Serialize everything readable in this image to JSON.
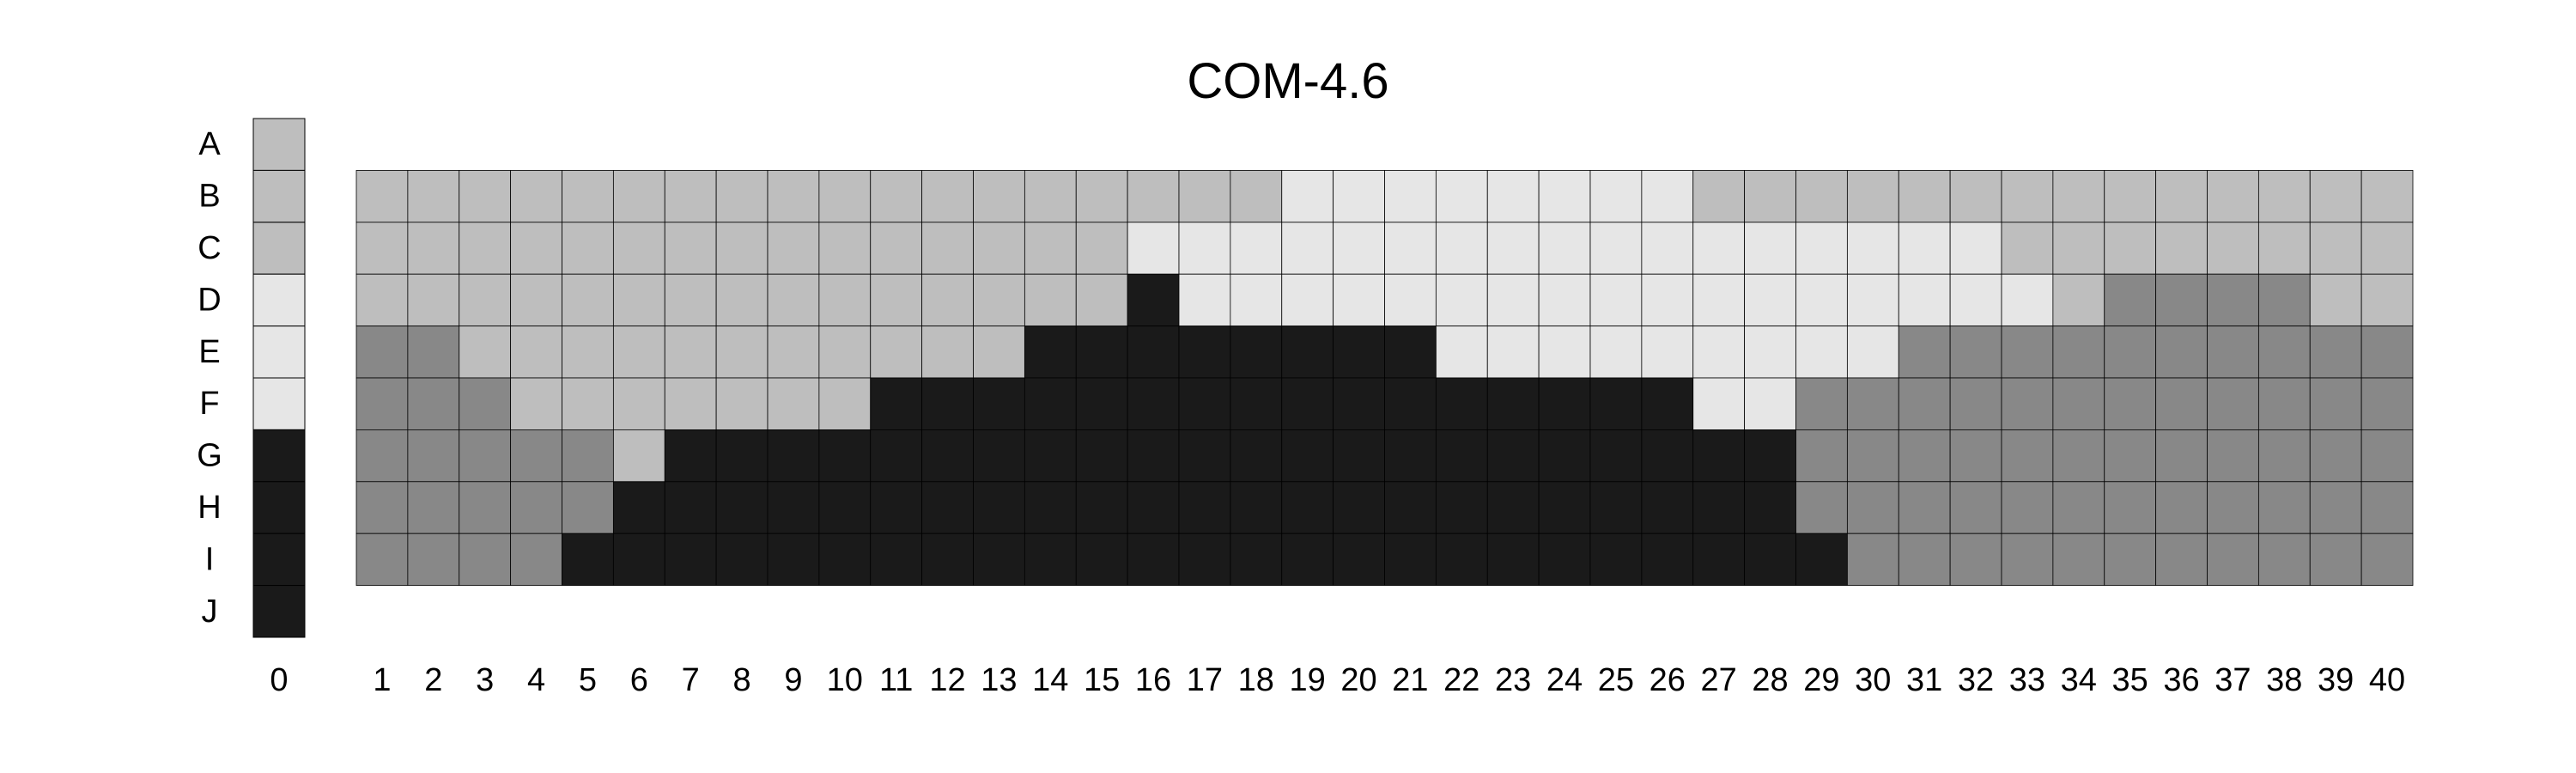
{
  "chart_data": {
    "type": "heatmap",
    "title": "COM-4.6",
    "xlabel": "",
    "ylabel": "",
    "row_labels": [
      "A",
      "B",
      "C",
      "D",
      "E",
      "F",
      "G",
      "H",
      "I",
      "J"
    ],
    "reference_column": {
      "label": "0",
      "levels": [
        2,
        2,
        2,
        1,
        1,
        1,
        4,
        4,
        4,
        4
      ]
    },
    "column_labels": [
      "1",
      "2",
      "3",
      "4",
      "5",
      "6",
      "7",
      "8",
      "9",
      "10",
      "11",
      "12",
      "13",
      "14",
      "15",
      "16",
      "17",
      "18",
      "19",
      "20",
      "21",
      "22",
      "23",
      "24",
      "25",
      "26",
      "27",
      "28",
      "29",
      "30",
      "31",
      "32",
      "33",
      "34",
      "35",
      "36",
      "37",
      "38",
      "39",
      "40"
    ],
    "grid_rows": [
      "B",
      "C",
      "D",
      "E",
      "F",
      "G",
      "H",
      "I"
    ],
    "level_colors": {
      "1": "#e6e6e6",
      "2": "#bebebe",
      "3": "#888888",
      "4": "#1a1a1a"
    },
    "matrix": [
      [
        2,
        2,
        2,
        2,
        2,
        2,
        2,
        2,
        2,
        2,
        2,
        2,
        2,
        2,
        2,
        2,
        2,
        2,
        1,
        1,
        1,
        1,
        1,
        1,
        1,
        1,
        2,
        2,
        2,
        2,
        2,
        2,
        2,
        2,
        2,
        2,
        2,
        2,
        2,
        2
      ],
      [
        2,
        2,
        2,
        2,
        2,
        2,
        2,
        2,
        2,
        2,
        2,
        2,
        2,
        2,
        2,
        1,
        1,
        1,
        1,
        1,
        1,
        1,
        1,
        1,
        1,
        1,
        1,
        1,
        1,
        1,
        1,
        1,
        2,
        2,
        2,
        2,
        2,
        2,
        2,
        2
      ],
      [
        2,
        2,
        2,
        2,
        2,
        2,
        2,
        2,
        2,
        2,
        2,
        2,
        2,
        2,
        2,
        4,
        1,
        1,
        1,
        1,
        1,
        1,
        1,
        1,
        1,
        1,
        1,
        1,
        1,
        1,
        1,
        1,
        1,
        2,
        3,
        3,
        3,
        3,
        2,
        2
      ],
      [
        3,
        3,
        2,
        2,
        2,
        2,
        2,
        2,
        2,
        2,
        2,
        2,
        2,
        4,
        4,
        4,
        4,
        4,
        4,
        4,
        4,
        1,
        1,
        1,
        1,
        1,
        1,
        1,
        1,
        1,
        3,
        3,
        3,
        3,
        3,
        3,
        3,
        3,
        3,
        3
      ],
      [
        3,
        3,
        3,
        2,
        2,
        2,
        2,
        2,
        2,
        2,
        4,
        4,
        4,
        4,
        4,
        4,
        4,
        4,
        4,
        4,
        4,
        4,
        4,
        4,
        4,
        4,
        1,
        1,
        3,
        3,
        3,
        3,
        3,
        3,
        3,
        3,
        3,
        3,
        3,
        3
      ],
      [
        3,
        3,
        3,
        3,
        3,
        2,
        4,
        4,
        4,
        4,
        4,
        4,
        4,
        4,
        4,
        4,
        4,
        4,
        4,
        4,
        4,
        4,
        4,
        4,
        4,
        4,
        4,
        4,
        3,
        3,
        3,
        3,
        3,
        3,
        3,
        3,
        3,
        3,
        3,
        3
      ],
      [
        3,
        3,
        3,
        3,
        3,
        4,
        4,
        4,
        4,
        4,
        4,
        4,
        4,
        4,
        4,
        4,
        4,
        4,
        4,
        4,
        4,
        4,
        4,
        4,
        4,
        4,
        4,
        4,
        3,
        3,
        3,
        3,
        3,
        3,
        3,
        3,
        3,
        3,
        3,
        3
      ],
      [
        3,
        3,
        3,
        3,
        4,
        4,
        4,
        4,
        4,
        4,
        4,
        4,
        4,
        4,
        4,
        4,
        4,
        4,
        4,
        4,
        4,
        4,
        4,
        4,
        4,
        4,
        4,
        4,
        4,
        3,
        3,
        3,
        3,
        3,
        3,
        3,
        3,
        3,
        3,
        3
      ]
    ],
    "grid": true,
    "legend": "none"
  }
}
